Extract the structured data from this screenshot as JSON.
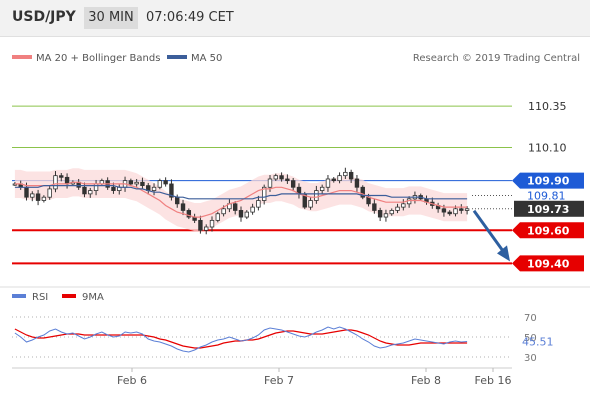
{
  "header": {
    "symbol": "USD/JPY",
    "timeframe": "30 MIN",
    "time": "07:06:49 CET"
  },
  "legend": {
    "ma20_label": "MA 20 + Bollinger Bands",
    "ma50_label": "MA 50",
    "ma20_color": "#f08080",
    "ma50_color": "#3c5e9a",
    "credit": "Research © 2019 Trading Central"
  },
  "chart_data": [
    {
      "type": "candlestick",
      "ylim": [
        110.52,
        109.33
      ],
      "levels": [
        {
          "value": 110.35,
          "label": "110.35",
          "kind": "target",
          "color": "#8bc34a"
        },
        {
          "value": 110.1,
          "label": "110.10",
          "kind": "target",
          "color": "#8bc34a"
        },
        {
          "value": 109.9,
          "label": "109.90",
          "kind": "pivot",
          "color": "#1e5bd6"
        },
        {
          "value": 109.6,
          "label": "109.60",
          "kind": "target",
          "color": "#e60000"
        },
        {
          "value": 109.4,
          "label": "109.40",
          "kind": "target",
          "color": "#e60000"
        }
      ],
      "labels": [
        {
          "value": 109.81,
          "label": "109.81",
          "kind": "reference",
          "color": "#1e5bd6"
        },
        {
          "value": 109.73,
          "label": "109.73",
          "kind": "last-price",
          "color": "#333333"
        }
      ],
      "x_ticks": [
        "Feb 6",
        "Feb 7",
        "Feb 8",
        "Feb 16"
      ],
      "close": [
        109.88,
        109.86,
        109.8,
        109.82,
        109.78,
        109.8,
        109.85,
        109.93,
        109.92,
        109.88,
        109.89,
        109.86,
        109.82,
        109.84,
        109.88,
        109.9,
        109.86,
        109.84,
        109.86,
        109.9,
        109.88,
        109.89,
        109.87,
        109.84,
        109.86,
        109.9,
        109.88,
        109.8,
        109.76,
        109.72,
        109.68,
        109.66,
        109.6,
        109.62,
        109.66,
        109.7,
        109.73,
        109.76,
        109.72,
        109.68,
        109.71,
        109.74,
        109.78,
        109.86,
        109.91,
        109.93,
        109.91,
        109.9,
        109.86,
        109.82,
        109.74,
        109.78,
        109.84,
        109.86,
        109.91,
        109.9,
        109.93,
        109.95,
        109.91,
        109.86,
        109.8,
        109.76,
        109.72,
        109.68,
        109.7,
        109.72,
        109.74,
        109.76,
        109.79,
        109.81,
        109.79,
        109.77,
        109.75,
        109.73,
        109.71,
        109.7,
        109.73,
        109.72,
        109.73
      ],
      "ma20": [
        109.88,
        109.88,
        109.87,
        109.87,
        109.87,
        109.87,
        109.87,
        109.88,
        109.88,
        109.88,
        109.89,
        109.89,
        109.88,
        109.88,
        109.88,
        109.88,
        109.88,
        109.88,
        109.88,
        109.88,
        109.87,
        109.86,
        109.84,
        109.82,
        109.8,
        109.78,
        109.75,
        109.73,
        109.71,
        109.7,
        109.69,
        109.68,
        109.68,
        109.69,
        109.7,
        109.72,
        109.74,
        109.76,
        109.77,
        109.78,
        109.8,
        109.82,
        109.84,
        109.85,
        109.85,
        109.86,
        109.86,
        109.85,
        109.84,
        109.82,
        109.81,
        109.8,
        109.8,
        109.81,
        109.82,
        109.83,
        109.84,
        109.84,
        109.84,
        109.83,
        109.82,
        109.8,
        109.79,
        109.78,
        109.77,
        109.77,
        109.77,
        109.77,
        109.78,
        109.78,
        109.78,
        109.77,
        109.76,
        109.75,
        109.74,
        109.74,
        109.74,
        109.74,
        109.74
      ],
      "ma50": [
        109.86,
        109.86,
        109.86,
        109.86,
        109.86,
        109.87,
        109.87,
        109.87,
        109.87,
        109.87,
        109.87,
        109.87,
        109.87,
        109.87,
        109.87,
        109.87,
        109.87,
        109.87,
        109.86,
        109.86,
        109.86,
        109.85,
        109.85,
        109.84,
        109.83,
        109.83,
        109.82,
        109.81,
        109.8,
        109.8,
        109.79,
        109.79,
        109.79,
        109.79,
        109.79,
        109.79,
        109.79,
        109.79,
        109.79,
        109.79,
        109.79,
        109.79,
        109.8,
        109.8,
        109.81,
        109.81,
        109.82,
        109.82,
        109.82,
        109.82,
        109.82,
        109.82,
        109.82,
        109.82,
        109.82,
        109.82,
        109.82,
        109.82,
        109.82,
        109.82,
        109.81,
        109.81,
        109.81,
        109.81,
        109.81,
        109.8,
        109.8,
        109.8,
        109.8,
        109.8,
        109.8,
        109.79,
        109.79,
        109.79,
        109.79,
        109.79,
        109.79,
        109.79,
        109.79
      ],
      "bb_width": 0.085
    },
    {
      "type": "line",
      "series": [
        {
          "name": "RSI",
          "color": "#5b7fd6",
          "last": "45.51"
        },
        {
          "name": "9MA",
          "color": "#e60000"
        }
      ],
      "ylim": [
        25,
        75
      ],
      "y_ticks": [
        70,
        50,
        30
      ],
      "rsi": [
        54,
        50,
        45,
        47,
        50,
        52,
        56,
        58,
        55,
        53,
        54,
        51,
        48,
        50,
        53,
        55,
        52,
        50,
        51,
        55,
        54,
        55,
        53,
        48,
        46,
        45,
        43,
        41,
        38,
        36,
        35,
        37,
        40,
        42,
        45,
        47,
        48,
        50,
        48,
        46,
        47,
        49,
        52,
        57,
        59,
        58,
        57,
        55,
        53,
        51,
        50,
        52,
        55,
        57,
        60,
        58,
        60,
        58,
        55,
        52,
        48,
        45,
        41,
        39,
        40,
        42,
        43,
        44,
        46,
        48,
        47,
        46,
        45,
        44,
        43,
        45,
        46,
        45,
        45.51
      ],
      "ma9": [
        58,
        55,
        52,
        50,
        49,
        49,
        50,
        51,
        52,
        53,
        53,
        53,
        52,
        52,
        52,
        52,
        52,
        52,
        52,
        52,
        52,
        52,
        52,
        51,
        50,
        48,
        47,
        45,
        43,
        41,
        40,
        39,
        39,
        40,
        41,
        42,
        44,
        45,
        46,
        46,
        47,
        47,
        48,
        50,
        52,
        54,
        55,
        56,
        56,
        55,
        54,
        53,
        53,
        53,
        54,
        55,
        56,
        57,
        57,
        56,
        54,
        52,
        49,
        46,
        44,
        43,
        42,
        42,
        42,
        43,
        44,
        44,
        44,
        44,
        44,
        44,
        44,
        44,
        44
      ]
    }
  ]
}
